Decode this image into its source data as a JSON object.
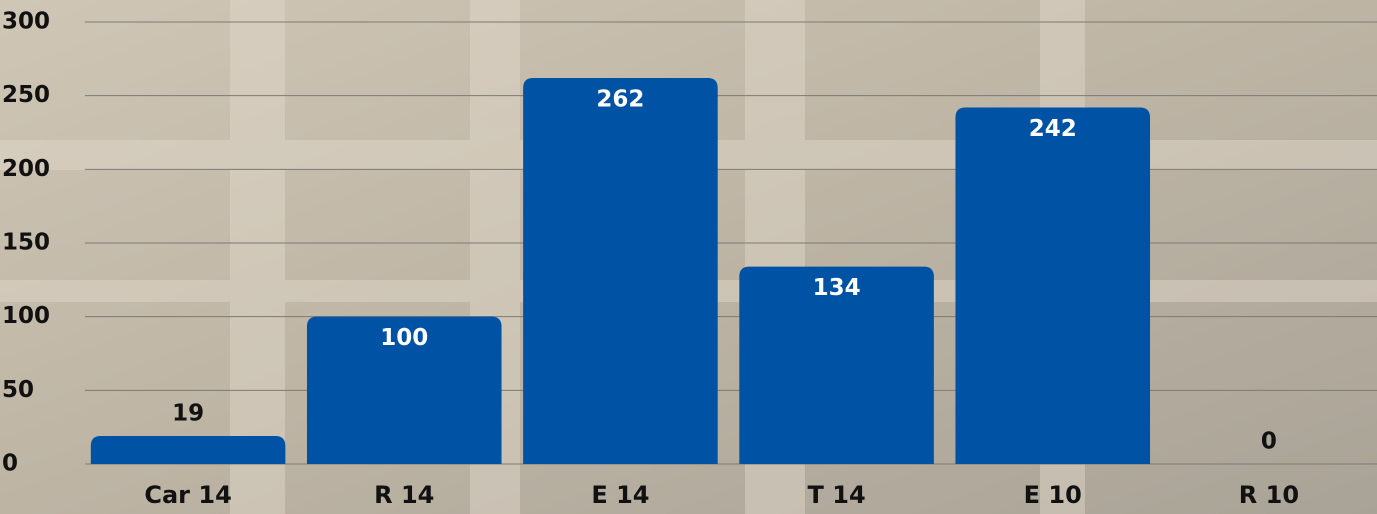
{
  "chart_data": {
    "type": "bar",
    "categories": [
      "Car 14",
      "R 14",
      "E 14",
      "T 14",
      "E 10",
      "R 10"
    ],
    "values": [
      19,
      100,
      262,
      134,
      242,
      0
    ],
    "color": "#0052a5",
    "ylim": [
      0,
      300
    ],
    "yticks": [
      0,
      50,
      100,
      150,
      200,
      250,
      300
    ],
    "grid": true
  }
}
